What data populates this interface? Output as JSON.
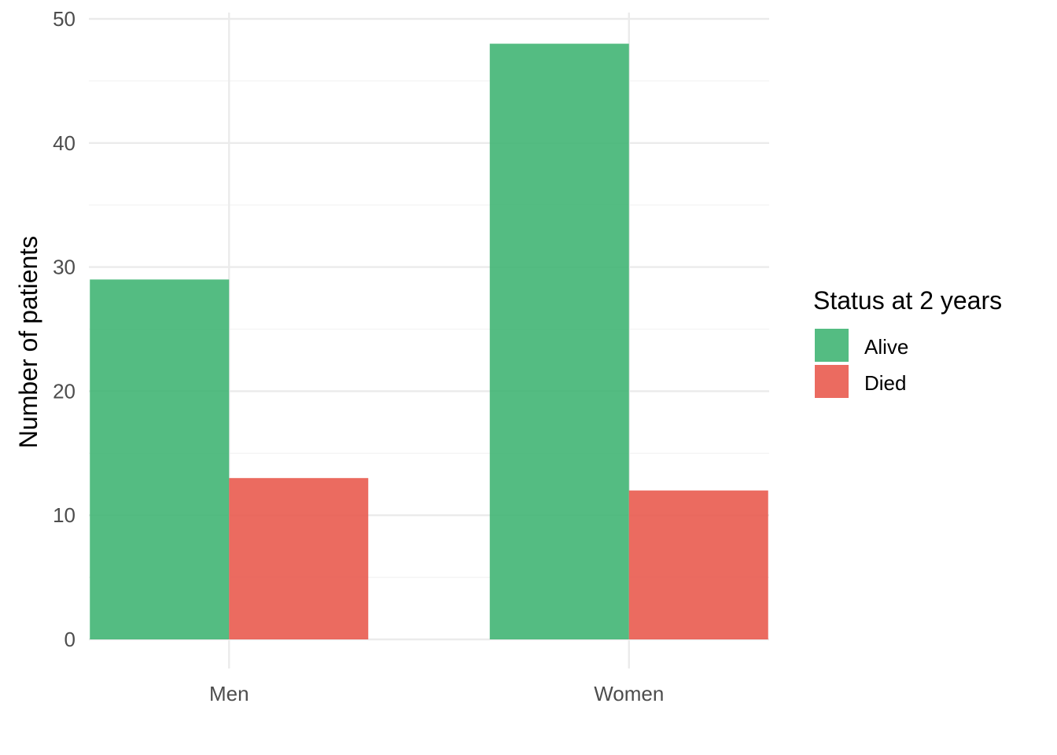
{
  "chart_data": {
    "type": "bar",
    "categories": [
      "Men",
      "Women"
    ],
    "series": [
      {
        "name": "Alive",
        "values": [
          29,
          48
        ],
        "color": "#3CB371"
      },
      {
        "name": "Died",
        "values": [
          13,
          12
        ],
        "color": "#E8574A"
      }
    ],
    "ylabel": "Number of patients",
    "xlabel": "",
    "ylim": [
      0,
      50
    ],
    "yticks": [
      0,
      10,
      20,
      30,
      40,
      50
    ],
    "grid": true,
    "legend": {
      "title": "Status at 2 years",
      "position": "right"
    }
  }
}
